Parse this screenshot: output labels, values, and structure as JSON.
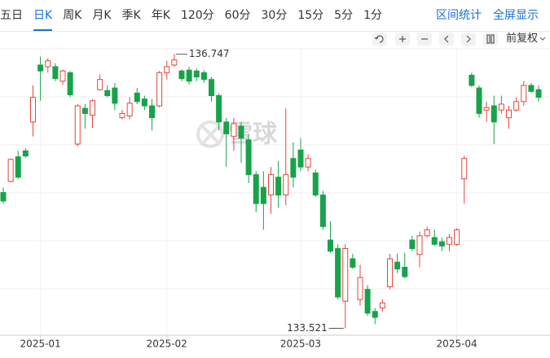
{
  "tabs": [
    {
      "label": "五日"
    },
    {
      "label": "日K",
      "active": true
    },
    {
      "label": "周K"
    },
    {
      "label": "月K"
    },
    {
      "label": "季K"
    },
    {
      "label": "年K"
    },
    {
      "label": "120分"
    },
    {
      "label": "60分"
    },
    {
      "label": "30分"
    },
    {
      "label": "15分"
    },
    {
      "label": "5分"
    },
    {
      "label": "1分"
    }
  ],
  "actions": [
    "区间统计",
    "全屏显示"
  ],
  "adjustment": "前复权",
  "watermark": "雪球",
  "chart_data": {
    "type": "candlestick",
    "categories": [
      null,
      null,
      null,
      null,
      null,
      "2025-01",
      null,
      null,
      null,
      null,
      null,
      null,
      null,
      null,
      null,
      null,
      null,
      null,
      null,
      null,
      null,
      null,
      "2025-02",
      null,
      null,
      null,
      null,
      null,
      null,
      null,
      null,
      null,
      null,
      null,
      null,
      null,
      null,
      null,
      null,
      null,
      "2025-03",
      null,
      null,
      null,
      null,
      null,
      null,
      null,
      null,
      null,
      null,
      null,
      null,
      null,
      null,
      null,
      null,
      null,
      null,
      null,
      null,
      "2025-04",
      null,
      null,
      null,
      null,
      null,
      null,
      null,
      null,
      null,
      null,
      null
    ],
    "open": [
      135.12,
      135.25,
      135.54,
      135.61,
      135.95,
      136.62,
      136.6,
      136.6,
      136.43,
      136.53,
      135.69,
      136.11,
      136.03,
      136.33,
      136.32,
      136.35,
      136.0,
      136.02,
      136.29,
      136.22,
      136.14,
      136.14,
      136.53,
      136.62,
      136.55,
      136.56,
      136.55,
      136.53,
      136.45,
      136.26,
      135.95,
      135.78,
      135.9,
      135.74,
      135.33,
      135.18,
      135.09,
      135.3,
      135.09,
      135.52,
      135.62,
      135.42,
      135.35,
      135.09,
      134.56,
      134.46,
      133.84,
      134.34,
      133.86,
      133.98,
      133.72,
      133.76,
      134.01,
      134.3,
      134.24,
      134.56,
      134.39,
      134.61,
      134.59,
      134.54,
      134.51,
      134.51,
      135.28,
      136.5,
      136.35,
      136.09,
      136.14,
      136.09,
      136.0,
      136.09,
      136.19,
      136.38,
      136.33
    ],
    "high": [
      135.18,
      135.52,
      135.61,
      135.64,
      136.38,
      136.72,
      136.7,
      136.64,
      136.57,
      136.55,
      136.16,
      136.16,
      136.22,
      136.51,
      136.38,
      136.41,
      136.09,
      136.24,
      136.35,
      136.26,
      136.22,
      136.55,
      136.67,
      136.747,
      136.57,
      136.6,
      136.58,
      136.56,
      136.48,
      136.29,
      136.0,
      136.0,
      135.95,
      135.81,
      135.37,
      135.37,
      135.42,
      135.49,
      136.11,
      135.71,
      135.76,
      135.57,
      135.39,
      135.14,
      134.78,
      134.51,
      134.51,
      134.4,
      134.27,
      134.03,
      133.76,
      133.86,
      134.4,
      134.4,
      134.41,
      134.61,
      134.66,
      134.72,
      134.68,
      134.59,
      134.63,
      134.7,
      135.55,
      136.53,
      136.38,
      136.19,
      136.26,
      136.26,
      136.14,
      136.24,
      136.43,
      136.41,
      136.38
    ],
    "low": [
      134.99,
      135.24,
      135.28,
      135.53,
      135.78,
      136.2,
      136.53,
      136.43,
      136.39,
      136.24,
      135.66,
      135.87,
      135.88,
      136.32,
      136.24,
      136.09,
      135.98,
      135.98,
      136.16,
      136.09,
      135.85,
      136.12,
      136.45,
      136.6,
      136.43,
      136.39,
      136.43,
      136.41,
      136.19,
      135.85,
      135.42,
      135.61,
      135.47,
      135.23,
      134.89,
      134.68,
      134.87,
      134.94,
      134.97,
      135.18,
      135.37,
      135.37,
      135.07,
      134.68,
      134.41,
      133.86,
      133.521,
      134.22,
      133.79,
      133.67,
      133.57,
      133.72,
      133.98,
      134.17,
      134.11,
      134.43,
      134.24,
      134.59,
      134.49,
      134.43,
      134.43,
      134.49,
      134.99,
      136.36,
      136.0,
      135.95,
      135.69,
      136.05,
      135.87,
      136.07,
      136.14,
      136.29,
      136.19
    ],
    "close": [
      135.02,
      135.51,
      135.3,
      135.55,
      136.24,
      136.55,
      136.67,
      136.46,
      136.55,
      136.27,
      136.14,
      136.05,
      136.2,
      136.45,
      136.26,
      136.17,
      136.05,
      136.17,
      136.19,
      136.14,
      136.0,
      136.53,
      136.6,
      136.68,
      136.46,
      136.43,
      136.48,
      136.45,
      136.26,
      135.95,
      135.81,
      135.93,
      135.76,
      135.33,
      134.99,
      134.99,
      135.33,
      135.09,
      135.33,
      135.3,
      135.42,
      135.52,
      135.09,
      134.72,
      134.43,
      133.89,
      134.46,
      134.24,
      134.12,
      133.7,
      133.65,
      133.82,
      134.34,
      134.22,
      134.13,
      134.46,
      134.61,
      134.68,
      134.51,
      134.49,
      134.59,
      134.68,
      135.52,
      136.38,
      136.05,
      136.12,
      135.95,
      136.16,
      136.09,
      136.19,
      136.38,
      136.31,
      136.24
    ],
    "ylim": [
      133.44,
      136.83
    ],
    "up_color": "#e5463b",
    "down_color": "#17a34a",
    "up_hollow": true,
    "mark_extremes": true
  }
}
